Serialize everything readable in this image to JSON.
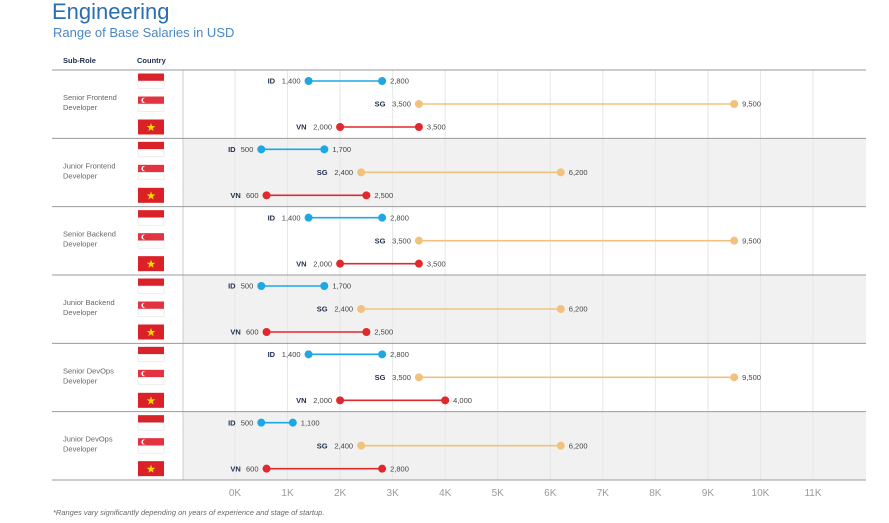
{
  "title": "Engineering",
  "subtitle": "Range of Base Salaries in USD",
  "footnote": "*Ranges vary significantly depending on years of experience and stage of startup.",
  "chart_data": {
    "type": "dumbbell",
    "col_headers": {
      "role": "Sub-Role",
      "country": "Country"
    },
    "xlim": [
      0,
      11000
    ],
    "xticks": [
      0,
      1000,
      2000,
      3000,
      4000,
      5000,
      6000,
      7000,
      8000,
      9000,
      10000,
      11000
    ],
    "xtick_labels": [
      "0K",
      "1K",
      "2K",
      "3K",
      "4K",
      "5K",
      "6K",
      "7K",
      "8K",
      "9K",
      "10K",
      "11K"
    ],
    "colors": {
      "ID": "#1ea7e4",
      "SG": "#f2c27d",
      "VN": "#e0292d"
    },
    "groups": [
      {
        "role": [
          "Senior Frontend",
          "Developer"
        ],
        "rows": [
          {
            "country": "ID",
            "min": 1400,
            "max": 2800,
            "min_label": "1,400",
            "max_label": "2,800"
          },
          {
            "country": "SG",
            "min": 3500,
            "max": 9500,
            "min_label": "3,500",
            "max_label": "9,500"
          },
          {
            "country": "VN",
            "min": 2000,
            "max": 3500,
            "min_label": "2,000",
            "max_label": "3,500"
          }
        ]
      },
      {
        "role": [
          "Junior Frontend",
          "Developer"
        ],
        "rows": [
          {
            "country": "ID",
            "min": 500,
            "max": 1700,
            "min_label": "500",
            "max_label": "1,700"
          },
          {
            "country": "SG",
            "min": 2400,
            "max": 6200,
            "min_label": "2,400",
            "max_label": "6,200"
          },
          {
            "country": "VN",
            "min": 600,
            "max": 2500,
            "min_label": "600",
            "max_label": "2,500"
          }
        ]
      },
      {
        "role": [
          "Senior Backend",
          "Developer"
        ],
        "rows": [
          {
            "country": "ID",
            "min": 1400,
            "max": 2800,
            "min_label": "1,400",
            "max_label": "2,800"
          },
          {
            "country": "SG",
            "min": 3500,
            "max": 9500,
            "min_label": "3,500",
            "max_label": "9,500"
          },
          {
            "country": "VN",
            "min": 2000,
            "max": 3500,
            "min_label": "2,000",
            "max_label": "3,500"
          }
        ]
      },
      {
        "role": [
          "Junior Backend",
          "Developer"
        ],
        "rows": [
          {
            "country": "ID",
            "min": 500,
            "max": 1700,
            "min_label": "500",
            "max_label": "1,700"
          },
          {
            "country": "SG",
            "min": 2400,
            "max": 6200,
            "min_label": "2,400",
            "max_label": "6,200"
          },
          {
            "country": "VN",
            "min": 600,
            "max": 2500,
            "min_label": "600",
            "max_label": "2,500"
          }
        ]
      },
      {
        "role": [
          "Senior DevOps",
          "Developer"
        ],
        "rows": [
          {
            "country": "ID",
            "min": 1400,
            "max": 2800,
            "min_label": "1,400",
            "max_label": "2,800"
          },
          {
            "country": "SG",
            "min": 3500,
            "max": 9500,
            "min_label": "3,500",
            "max_label": "9,500"
          },
          {
            "country": "VN",
            "min": 2000,
            "max": 4000,
            "min_label": "2,000",
            "max_label": "4,000"
          }
        ]
      },
      {
        "role": [
          "Junior DevOps",
          "Developer"
        ],
        "rows": [
          {
            "country": "ID",
            "min": 500,
            "max": 1100,
            "min_label": "500",
            "max_label": "1,100"
          },
          {
            "country": "SG",
            "min": 2400,
            "max": 6200,
            "min_label": "2,400",
            "max_label": "6,200"
          },
          {
            "country": "VN",
            "min": 600,
            "max": 2800,
            "min_label": "600",
            "max_label": "2,800"
          }
        ]
      }
    ]
  }
}
